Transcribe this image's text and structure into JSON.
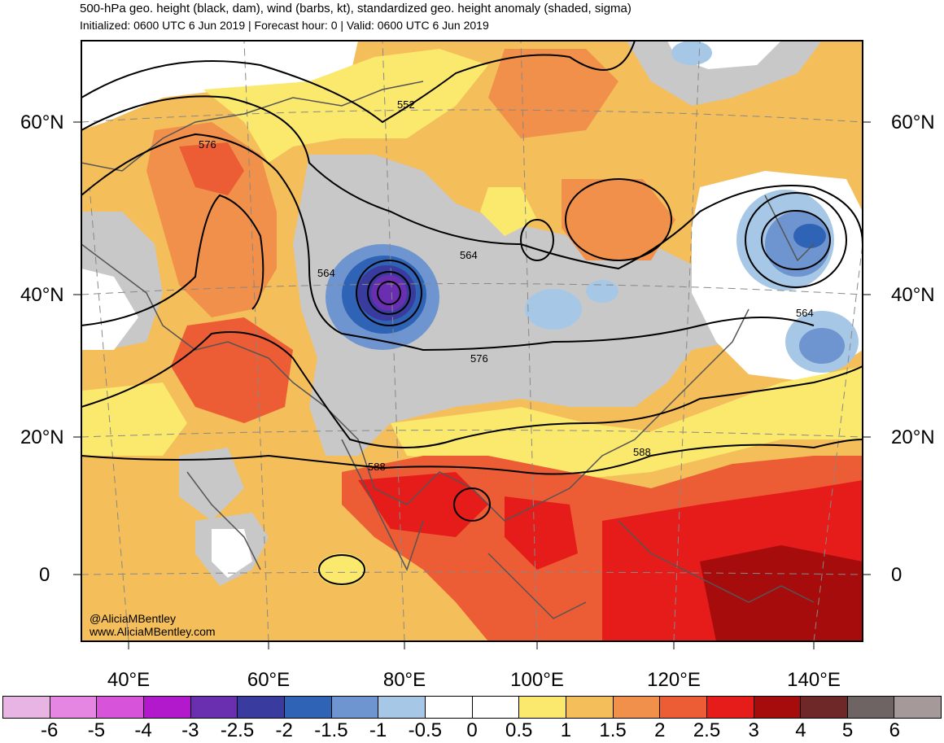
{
  "title": "500-hPa geo. height (black, dam), wind (barbs, kt), standardized geo. height anomaly (shaded, sigma)",
  "subtitle": "Initialized: 0600 UTC 6 Jun 2019 | Forecast hour: 0 | Valid: 0600 UTC 6 Jun 2019",
  "lat_labels": [
    "60°N",
    "40°N",
    "20°N",
    "0"
  ],
  "lon_labels": [
    "40°E",
    "60°E",
    "80°E",
    "100°E",
    "120°E",
    "140°E"
  ],
  "contour_labels": [
    "552",
    "576",
    "564",
    "564",
    "564",
    "576",
    "588",
    "588"
  ],
  "watermark": {
    "handle": "@AliciaMBentley",
    "site": "www.AliciaMBentley.com"
  },
  "colorbar": {
    "labels": [
      "-6",
      "-5",
      "-4",
      "-3",
      "-2.5",
      "-2",
      "-1.5",
      "-1",
      "-0.5",
      "0",
      "0.5",
      "1",
      "1.5",
      "2",
      "2.5",
      "3",
      "4",
      "5",
      "6"
    ],
    "colors": [
      "#e8b4e4",
      "#e586e2",
      "#d653da",
      "#b319cc",
      "#6a2fb0",
      "#393c9e",
      "#2f63b5",
      "#6e95cf",
      "#a6c8e6",
      "#ffffff",
      "#ffffff",
      "#fbe96e",
      "#f4be5a",
      "#f0904a",
      "#ec5c35",
      "#e51c19",
      "#a70c0c",
      "#6e2828",
      "#6e6464",
      "#a69999"
    ]
  },
  "colors": {
    "neutral_shading": "#c8c8c8",
    "contour": "#000000",
    "coast": "#555555"
  }
}
